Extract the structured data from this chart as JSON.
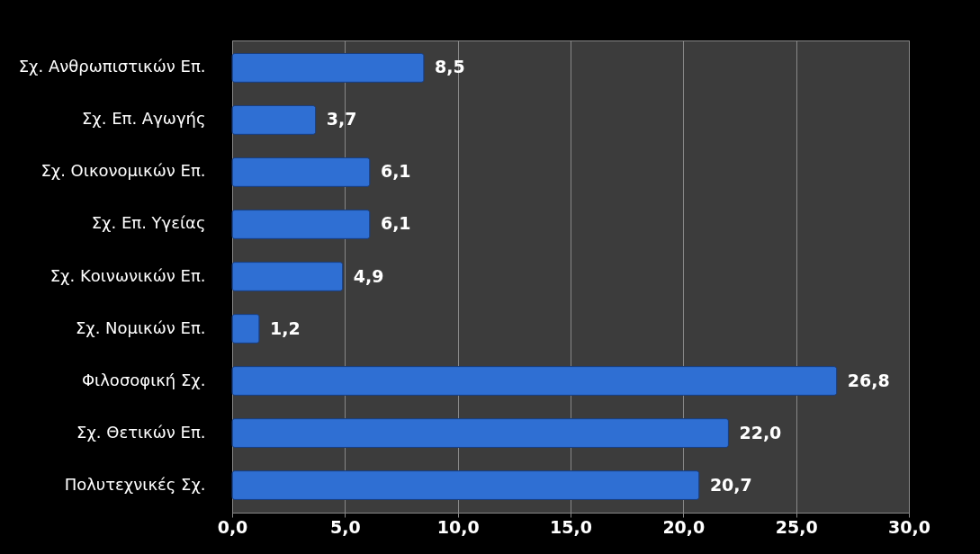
{
  "chart_data": {
    "type": "bar",
    "orientation": "horizontal",
    "categories": [
      "Σχ. Ανθρωπιστικών Επ.",
      "Σχ. Επ. Αγωγής",
      "Σχ. Οικονομικών Επ.",
      "Σχ. Επ. Υγείας",
      "Σχ. Κοινωνικών Επ.",
      "Σχ. Νομικών Επ.",
      "Φιλοσοφική Σχ.",
      "Σχ. Θετικών Επ.",
      "Πολυτεχνικές Σχ."
    ],
    "values": [
      8.5,
      3.7,
      6.1,
      6.1,
      4.9,
      1.2,
      26.8,
      22.0,
      20.7
    ],
    "value_labels": [
      "8,5",
      "3,7",
      "6,1",
      "6,1",
      "4,9",
      "1,2",
      "26,8",
      "22,0",
      "20,7"
    ],
    "color": "#2f6fd3",
    "xlim": [
      0,
      30
    ],
    "xticks": [
      {
        "value": 0,
        "label": "0,0"
      },
      {
        "value": 5,
        "label": "5,0"
      },
      {
        "value": 10,
        "label": "10,0"
      },
      {
        "value": 15,
        "label": "15,0"
      },
      {
        "value": 20,
        "label": "20,0"
      },
      {
        "value": 25,
        "label": "25,0"
      },
      {
        "value": 30,
        "label": "30,0"
      }
    ],
    "grid": "x"
  }
}
